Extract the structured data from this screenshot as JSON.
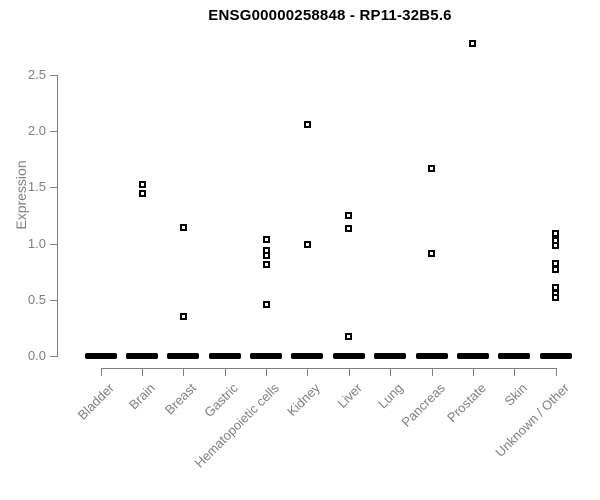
{
  "title": "ENSG00000258848 - RP11-32B5.6",
  "colors": {
    "point": "#000000",
    "axis": "#808080",
    "axis_text": "#808080",
    "title_text": "#000000",
    "background": "#ffffff"
  },
  "chart_data": {
    "type": "scatter",
    "subtype": "strip-plot",
    "title": "ENSG00000258848 - RP11-32B5.6",
    "xlabel": "",
    "ylabel": "Expression",
    "ylim": [
      0,
      2.85
    ],
    "y_ticks": [
      "0.0",
      "0.5",
      "1.0",
      "1.5",
      "2.0",
      "2.5"
    ],
    "grid": false,
    "legend": false,
    "point_marker": "open-square",
    "categories": [
      "Bladder",
      "Brain",
      "Breast",
      "Gastric",
      "Hematopoietic cells",
      "Kidney",
      "Liver",
      "Lung",
      "Pancreas",
      "Prostate",
      "Skin",
      "Unknown / Other"
    ],
    "groups": [
      {
        "label": "Bladder",
        "zero_cluster": true,
        "values": []
      },
      {
        "label": "Brain",
        "zero_cluster": true,
        "values": [
          1.53,
          1.45
        ]
      },
      {
        "label": "Breast",
        "zero_cluster": true,
        "values": [
          1.14,
          0.35
        ]
      },
      {
        "label": "Gastric",
        "zero_cluster": true,
        "values": []
      },
      {
        "label": "Hematopoietic cells",
        "zero_cluster": true,
        "values": [
          1.04,
          0.94,
          0.89,
          0.81,
          0.46
        ]
      },
      {
        "label": "Kidney",
        "zero_cluster": true,
        "values": [
          2.06,
          0.99
        ]
      },
      {
        "label": "Liver",
        "zero_cluster": true,
        "values": [
          1.25,
          1.13,
          0.17
        ]
      },
      {
        "label": "Lung",
        "zero_cluster": true,
        "values": []
      },
      {
        "label": "Pancreas",
        "zero_cluster": true,
        "values": [
          1.67,
          0.91
        ]
      },
      {
        "label": "Prostate",
        "zero_cluster": true,
        "values": [
          2.78
        ]
      },
      {
        "label": "Skin",
        "zero_cluster": true,
        "values": []
      },
      {
        "label": "Unknown / Other",
        "zero_cluster": true,
        "values": [
          1.09,
          1.03,
          0.98,
          0.82,
          0.77,
          0.61,
          0.56,
          0.52
        ]
      }
    ]
  }
}
